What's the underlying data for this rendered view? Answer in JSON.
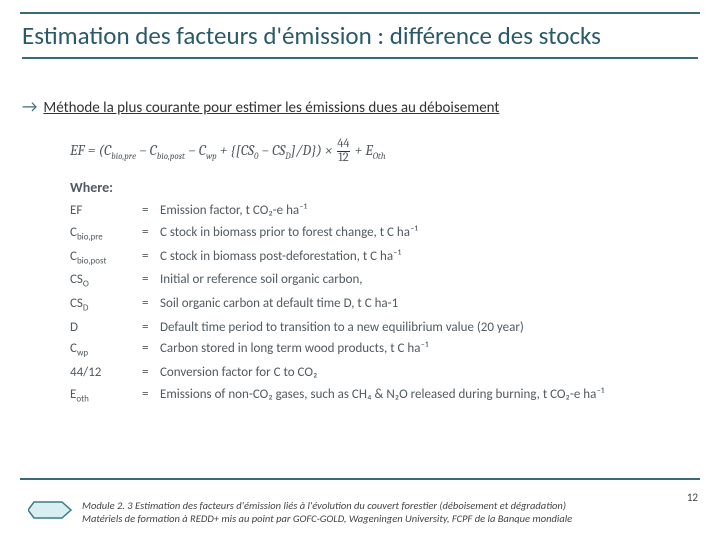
{
  "colors": {
    "title": "#2a5a6a",
    "rule": "#3a6a78",
    "arrow": "#3a6a78",
    "subtitle": "#333333",
    "body": "#505a60",
    "footer": "#444444",
    "hex_stroke": "#3a7a8a",
    "hex_fill": "#d9eef0"
  },
  "title": "Estimation des facteurs d'émission : différence des stocks",
  "arrow_glyph": "→",
  "subtitle": "Méthode la plus courante pour estimer les émissions dues au déboisement",
  "formula": {
    "lhs": "EF",
    "open": "(",
    "t1": "C",
    "t1_sub": "bio,pre",
    "minus1": " − ",
    "t2": "C",
    "t2_sub": "bio,post",
    "minus2": " − ",
    "t3": "C",
    "t3_sub": "wp",
    "plus": " + ",
    "brace_open": "{[",
    "t4": "CS",
    "t4_sub": "0",
    "minus3": " − ",
    "t5": "CS",
    "t5_sub": "D",
    "brace_close": "]/",
    "t6": "D",
    "close2": "}",
    "close": ")",
    "times": " × ",
    "frac_n": "44",
    "frac_d": "12",
    "plus2": " + ",
    "t7": "E",
    "t7_sub": "Oth"
  },
  "where_label": "Where:",
  "definitions": [
    {
      "sym": "EF",
      "sub": "",
      "eq": "=",
      "desc": "Emission factor, t CO₂-e ha⁻¹"
    },
    {
      "sym": "C",
      "sub": "bio,pre",
      "eq": "=",
      "desc": "C stock in biomass prior to forest change, t C ha⁻¹"
    },
    {
      "sym": "C",
      "sub": "bio,post",
      "eq": "=",
      "desc": "C stock in biomass post-deforestation, t C ha⁻¹"
    },
    {
      "sym": "CS",
      "sub": "O",
      "eq": "=",
      "desc": "Initial or reference soil organic carbon,"
    },
    {
      "sym": "CS",
      "sub": "D",
      "eq": "=",
      "desc": "Soil organic carbon at default time D, t C ha-1"
    },
    {
      "sym": "D",
      "sub": "",
      "eq": "=",
      "desc": "Default time period to transition to a new equilibrium value (20 year)"
    },
    {
      "sym": "C",
      "sub": "wp",
      "eq": "=",
      "desc": "Carbon stored in long term wood products, t C ha⁻¹"
    },
    {
      "sym": "44/12",
      "sub": "",
      "eq": "=",
      "desc": "Conversion factor for C to CO₂"
    },
    {
      "sym": "E",
      "sub": "oth",
      "eq": "=",
      "desc": "Emissions of non-CO₂ gases, such as CH₄ & N₂O released during burning, t CO₂-e ha⁻¹"
    }
  ],
  "footer_line1": "Module 2. 3 Estimation des facteurs d'émission liés à l'évolution du couvert forestier (déboisement et dégradation)",
  "footer_line2": "Matériels de formation à REDD+ mis au point par GOFC-GOLD, Wageningen University, FCPF de la Banque mondiale",
  "page_num": "12"
}
